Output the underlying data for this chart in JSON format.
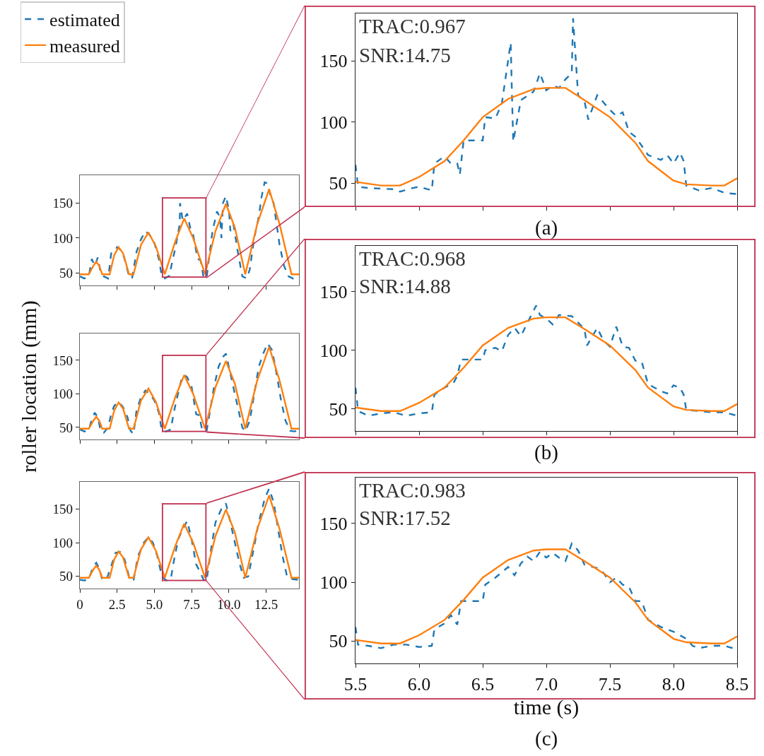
{
  "chart_data": [
    {
      "type": "line",
      "legend": "top left",
      "xlim": [
        0,
        14.7
      ],
      "ylim": [
        32,
        190
      ],
      "xticks": [
        {
          "value": 0,
          "label": null
        },
        {
          "value": 2.5,
          "label": null
        },
        {
          "value": 5,
          "label": null
        },
        {
          "value": 7.5,
          "label": null
        },
        {
          "value": 10,
          "label": null
        },
        {
          "value": 12.5,
          "label": null
        }
      ],
      "yticks": [
        50,
        100,
        150
      ],
      "tick_labels": "y",
      "series": [
        {
          "name": "estimated",
          "color": "#1f77b4",
          "line_style": "dashed",
          "x": [
            0,
            0.3,
            0.6,
            0.8,
            1.0,
            1.2,
            1.4,
            1.6,
            1.9,
            2.1,
            2.3,
            2.5,
            2.8,
            3.0,
            3.3,
            3.5,
            3.8,
            4.1,
            4.4,
            4.7,
            5.0,
            5.3,
            5.5,
            5.7,
            6.0,
            6.2,
            6.4,
            6.7,
            6.72,
            6.9,
            7.2,
            7.4,
            7.6,
            7.9,
            8.1,
            8.3,
            8.5,
            8.6,
            8.9,
            9.2,
            9.4,
            9.5,
            9.6,
            9.8,
            10.0,
            10.1,
            10.3,
            10.6,
            10.9,
            11.2,
            11.4,
            11.7,
            12.0,
            12.2,
            12.4,
            12.6,
            12.8,
            13.0,
            13.2,
            13.4,
            13.7,
            14.0,
            14.3,
            14.7
          ],
          "values": [
            45,
            42,
            45,
            70,
            60,
            72,
            50,
            45,
            42,
            78,
            80,
            87,
            82,
            70,
            45,
            42,
            80,
            98,
            110,
            104,
            93,
            70,
            45,
            42,
            46,
            66,
            85,
            120,
            150,
            125,
            135,
            115,
            105,
            70,
            68,
            44,
            42,
            60,
            110,
            138,
            130,
            100,
            150,
            160,
            140,
            110,
            120,
            80,
            45,
            42,
            55,
            100,
            130,
            160,
            180,
            178,
            160,
            150,
            120,
            90,
            60,
            45,
            42,
            45
          ]
        },
        {
          "name": "measured",
          "color": "#ff7f0e",
          "line_style": "solid",
          "x": [
            0,
            0.6,
            0.9,
            1.1,
            1.3,
            1.5,
            2.0,
            2.3,
            2.6,
            2.9,
            3.3,
            3.6,
            4.1,
            4.6,
            5.1,
            5.7,
            6.4,
            7.0,
            7.6,
            8.4,
            9.1,
            9.8,
            10.4,
            11.1,
            11.9,
            12.7,
            13.4,
            14.2,
            14.7
          ],
          "values": [
            48,
            48,
            60,
            66,
            60,
            48,
            48,
            75,
            87,
            78,
            48,
            48,
            90,
            108,
            88,
            48,
            95,
            128,
            100,
            48,
            110,
            149,
            115,
            48,
            120,
            170,
            120,
            48,
            48
          ]
        }
      ]
    },
    {
      "type": "line",
      "xlim": [
        5.5,
        8.5
      ],
      "ylim": [
        31,
        189
      ],
      "xticks": [
        {
          "value": 5.5,
          "label": null
        },
        {
          "value": 6,
          "label": null
        },
        {
          "value": 6.5,
          "label": null
        },
        {
          "value": 7,
          "label": null
        },
        {
          "value": 7.5,
          "label": null
        },
        {
          "value": 8,
          "label": null
        },
        {
          "value": 8.5,
          "label": null
        }
      ],
      "yticks": [
        50,
        100,
        150
      ],
      "tick_labels": "y",
      "annotations": [
        "TRAC:0.967",
        "SNR:14.75",
        "(a)"
      ],
      "series": [
        {
          "color": "#1f77b4",
          "line_style": "dashed",
          "x": [
            5.5,
            5.52,
            5.6,
            5.8,
            5.85,
            5.95,
            6.0,
            6.1,
            6.12,
            6.2,
            6.25,
            6.3,
            6.32,
            6.35,
            6.45,
            6.5,
            6.52,
            6.6,
            6.65,
            6.72,
            6.73,
            6.74,
            6.8,
            6.9,
            6.95,
            7.0,
            7.05,
            7.1,
            7.15,
            7.2,
            7.21,
            7.25,
            7.3,
            7.33,
            7.4,
            7.5,
            7.55,
            7.6,
            7.65,
            7.7,
            7.8,
            7.9,
            7.95,
            8.0,
            8.05,
            8.08,
            8.1,
            8.2,
            8.3,
            8.4,
            8.5
          ],
          "values": [
            65,
            47,
            46,
            45,
            43,
            46,
            47,
            44,
            66,
            72,
            66,
            66,
            57,
            85,
            85,
            85,
            104,
            103,
            115,
            165,
            122,
            84,
            118,
            125,
            140,
            126,
            130,
            128,
            135,
            140,
            185,
            122,
            117,
            102,
            122,
            110,
            105,
            108,
            92,
            88,
            73,
            69,
            73,
            66,
            75,
            68,
            48,
            44,
            46,
            42,
            41
          ]
        },
        {
          "color": "#ff7f0e",
          "line_style": "solid",
          "x": [
            5.5,
            5.7,
            5.85,
            6.0,
            6.2,
            6.35,
            6.5,
            6.7,
            6.9,
            7.0,
            7.15,
            7.3,
            7.5,
            7.7,
            7.8,
            8.0,
            8.1,
            8.3,
            8.4,
            8.5
          ],
          "values": [
            51,
            48,
            48,
            55,
            68,
            85,
            104,
            119,
            127,
            128,
            128,
            118,
            104,
            83,
            68,
            52,
            49,
            48,
            48,
            54
          ]
        }
      ]
    },
    {
      "type": "line",
      "ylabel": "roller location (mm)",
      "xlim": [
        0,
        14.7
      ],
      "ylim": [
        32,
        190
      ],
      "xticks": [
        {
          "value": 0,
          "label": null
        },
        {
          "value": 2.5,
          "label": null
        },
        {
          "value": 5,
          "label": null
        },
        {
          "value": 7.5,
          "label": null
        },
        {
          "value": 10,
          "label": null
        },
        {
          "value": 12.5,
          "label": null
        }
      ],
      "yticks": [
        50,
        100,
        150
      ],
      "tick_labels": "y",
      "series": [
        {
          "color": "#1f77b4",
          "line_style": "dashed",
          "x": [
            0,
            0.3,
            0.6,
            0.8,
            1.0,
            1.2,
            1.4,
            1.6,
            1.9,
            2.1,
            2.3,
            2.6,
            2.9,
            3.2,
            3.4,
            3.6,
            3.8,
            4.1,
            4.4,
            4.7,
            5.0,
            5.3,
            5.5,
            5.8,
            6.1,
            6.3,
            6.5,
            6.8,
            7.0,
            7.2,
            7.5,
            7.8,
            8.0,
            8.2,
            8.5,
            8.7,
            9.0,
            9.3,
            9.6,
            9.8,
            10.0,
            10.3,
            10.6,
            10.9,
            11.1,
            11.4,
            11.7,
            12.0,
            12.3,
            12.6,
            12.9,
            13.2,
            13.5,
            13.8,
            14.1,
            14.4,
            14.7
          ],
          "values": [
            47,
            44,
            46,
            62,
            72,
            65,
            45,
            42,
            50,
            70,
            82,
            88,
            80,
            65,
            45,
            40,
            75,
            95,
            105,
            100,
            90,
            72,
            45,
            44,
            47,
            72,
            92,
            120,
            128,
            125,
            110,
            70,
            68,
            47,
            44,
            70,
            110,
            140,
            155,
            160,
            140,
            110,
            80,
            50,
            44,
            60,
            100,
            140,
            160,
            175,
            165,
            130,
            90,
            60,
            45,
            44,
            46
          ]
        },
        {
          "color": "#ff7f0e",
          "line_style": "solid",
          "x": [
            0,
            0.6,
            0.9,
            1.1,
            1.3,
            1.5,
            2.0,
            2.3,
            2.6,
            2.9,
            3.3,
            3.6,
            4.1,
            4.6,
            5.1,
            5.7,
            6.4,
            7.0,
            7.6,
            8.4,
            9.1,
            9.8,
            10.4,
            11.1,
            11.9,
            12.7,
            13.4,
            14.2,
            14.7
          ],
          "values": [
            48,
            48,
            60,
            66,
            60,
            48,
            48,
            75,
            87,
            78,
            48,
            48,
            90,
            108,
            88,
            48,
            95,
            128,
            100,
            48,
            110,
            149,
            115,
            48,
            120,
            170,
            120,
            48,
            48
          ]
        }
      ]
    },
    {
      "type": "line",
      "xlim": [
        5.5,
        8.5
      ],
      "ylim": [
        31,
        189
      ],
      "xticks": [
        {
          "value": 5.5,
          "label": null
        },
        {
          "value": 6,
          "label": null
        },
        {
          "value": 6.5,
          "label": null
        },
        {
          "value": 7,
          "label": null
        },
        {
          "value": 7.5,
          "label": null
        },
        {
          "value": 8,
          "label": null
        },
        {
          "value": 8.5,
          "label": null
        }
      ],
      "yticks": [
        50,
        100,
        150
      ],
      "tick_labels": "y",
      "annotations": [
        "TRAC:0.968",
        "SNR:14.88",
        "(b)"
      ],
      "series": [
        {
          "color": "#1f77b4",
          "line_style": "dashed",
          "x": [
            5.5,
            5.52,
            5.6,
            5.7,
            5.8,
            5.9,
            6.0,
            6.1,
            6.12,
            6.2,
            6.27,
            6.3,
            6.33,
            6.5,
            6.52,
            6.6,
            6.65,
            6.7,
            6.75,
            6.8,
            6.85,
            6.92,
            6.95,
            7.0,
            7.05,
            7.1,
            7.2,
            7.3,
            7.32,
            7.4,
            7.45,
            7.5,
            7.55,
            7.6,
            7.65,
            7.7,
            7.75,
            7.8,
            7.9,
            7.95,
            8.0,
            8.05,
            8.08,
            8.1,
            8.2,
            8.3,
            8.4,
            8.5
          ],
          "values": [
            68,
            48,
            44,
            46,
            47,
            44,
            46,
            47,
            62,
            68,
            72,
            78,
            92,
            92,
            100,
            102,
            99,
            113,
            119,
            112,
            123,
            138,
            130,
            127,
            122,
            130,
            129,
            118,
            104,
            119,
            108,
            103,
            120,
            103,
            102,
            91,
            90,
            71,
            65,
            63,
            70,
            68,
            62,
            49,
            48,
            47,
            47,
            44
          ]
        },
        {
          "color": "#ff7f0e",
          "line_style": "solid",
          "x": [
            5.5,
            5.7,
            5.85,
            6.0,
            6.2,
            6.35,
            6.5,
            6.7,
            6.9,
            7.0,
            7.15,
            7.3,
            7.5,
            7.7,
            7.8,
            8.0,
            8.1,
            8.3,
            8.4,
            8.5
          ],
          "values": [
            51,
            48,
            48,
            55,
            68,
            85,
            104,
            119,
            127,
            128,
            128,
            118,
            104,
            83,
            68,
            52,
            49,
            48,
            48,
            54
          ]
        }
      ]
    },
    {
      "type": "line",
      "xlim": [
        0,
        14.7
      ],
      "ylim": [
        32,
        190
      ],
      "xticks": [
        0,
        2.5,
        {
          "value": 5,
          "label": "5.0"
        },
        7.5,
        {
          "value": 10,
          "label": "10.0"
        },
        12.5
      ],
      "yticks": [
        50,
        100,
        150
      ],
      "series": [
        {
          "color": "#1f77b4",
          "line_style": "dashed",
          "x": [
            0,
            0.3,
            0.6,
            0.9,
            1.1,
            1.3,
            1.5,
            1.8,
            2.1,
            2.4,
            2.7,
            3.0,
            3.3,
            3.6,
            3.9,
            4.3,
            4.6,
            4.9,
            5.2,
            5.5,
            5.8,
            6.1,
            6.3,
            6.6,
            6.9,
            7.2,
            7.5,
            7.8,
            8.1,
            8.3,
            8.5,
            8.8,
            9.1,
            9.5,
            9.8,
            10.1,
            10.4,
            10.7,
            11.0,
            11.3,
            11.7,
            12.0,
            12.4,
            12.7,
            13.0,
            13.3,
            13.6,
            13.9,
            14.2,
            14.7
          ],
          "values": [
            45,
            44,
            46,
            65,
            70,
            62,
            45,
            46,
            65,
            85,
            86,
            75,
            50,
            44,
            80,
            100,
            108,
            100,
            80,
            50,
            44,
            46,
            72,
            105,
            120,
            132,
            105,
            68,
            55,
            45,
            43,
            90,
            130,
            150,
            158,
            130,
            100,
            70,
            48,
            50,
            95,
            130,
            165,
            180,
            160,
            120,
            80,
            50,
            46,
            45
          ]
        },
        {
          "color": "#ff7f0e",
          "line_style": "solid",
          "x": [
            0,
            0.6,
            0.9,
            1.1,
            1.3,
            1.5,
            2.0,
            2.3,
            2.6,
            2.9,
            3.3,
            3.6,
            4.1,
            4.6,
            5.1,
            5.7,
            6.4,
            7.0,
            7.6,
            8.4,
            9.1,
            9.8,
            10.4,
            11.1,
            11.9,
            12.7,
            13.4,
            14.2,
            14.7
          ],
          "values": [
            48,
            48,
            60,
            66,
            60,
            48,
            48,
            75,
            87,
            78,
            48,
            48,
            90,
            108,
            88,
            48,
            95,
            128,
            100,
            48,
            110,
            149,
            115,
            48,
            120,
            170,
            120,
            48,
            48
          ]
        }
      ]
    },
    {
      "type": "line",
      "xlabel": "time (s)",
      "xlim": [
        5.5,
        8.5
      ],
      "ylim": [
        31,
        189
      ],
      "xticks": [
        5.5,
        {
          "value": 6,
          "label": "6.0"
        },
        6.5,
        {
          "value": 7,
          "label": "7.0"
        },
        7.5,
        {
          "value": 8,
          "label": "8.0"
        },
        8.5
      ],
      "yticks": [
        50,
        100,
        150
      ],
      "annotations": [
        "TRAC:0.983",
        "SNR:17.52",
        "(c)"
      ],
      "series": [
        {
          "color": "#1f77b4",
          "line_style": "dashed",
          "x": [
            5.5,
            5.52,
            5.6,
            5.7,
            5.8,
            5.9,
            6.0,
            6.1,
            6.12,
            6.2,
            6.25,
            6.3,
            6.33,
            6.5,
            6.52,
            6.6,
            6.7,
            6.75,
            6.8,
            6.85,
            6.9,
            6.95,
            7.0,
            7.05,
            7.1,
            7.15,
            7.2,
            7.25,
            7.3,
            7.4,
            7.45,
            7.5,
            7.55,
            7.6,
            7.65,
            7.7,
            7.75,
            7.8,
            7.9,
            8.0,
            8.05,
            8.1,
            8.15,
            8.2,
            8.3,
            8.4,
            8.5
          ],
          "values": [
            62,
            47,
            46,
            44,
            47,
            47,
            45,
            46,
            60,
            65,
            72,
            64,
            84,
            84,
            98,
            104,
            113,
            106,
            116,
            122,
            118,
            126,
            121,
            125,
            121,
            118,
            133,
            127,
            115,
            112,
            108,
            100,
            104,
            98,
            96,
            84,
            84,
            68,
            62,
            58,
            55,
            52,
            46,
            44,
            46,
            46,
            43
          ]
        },
        {
          "color": "#ff7f0e",
          "line_style": "solid",
          "x": [
            5.5,
            5.7,
            5.85,
            6.0,
            6.2,
            6.35,
            6.5,
            6.7,
            6.9,
            7.0,
            7.15,
            7.3,
            7.5,
            7.7,
            7.8,
            8.0,
            8.1,
            8.3,
            8.4,
            8.5
          ],
          "values": [
            51,
            48,
            48,
            55,
            68,
            85,
            104,
            119,
            127,
            128,
            128,
            118,
            104,
            83,
            68,
            52,
            49,
            48,
            48,
            54
          ]
        }
      ]
    }
  ]
}
